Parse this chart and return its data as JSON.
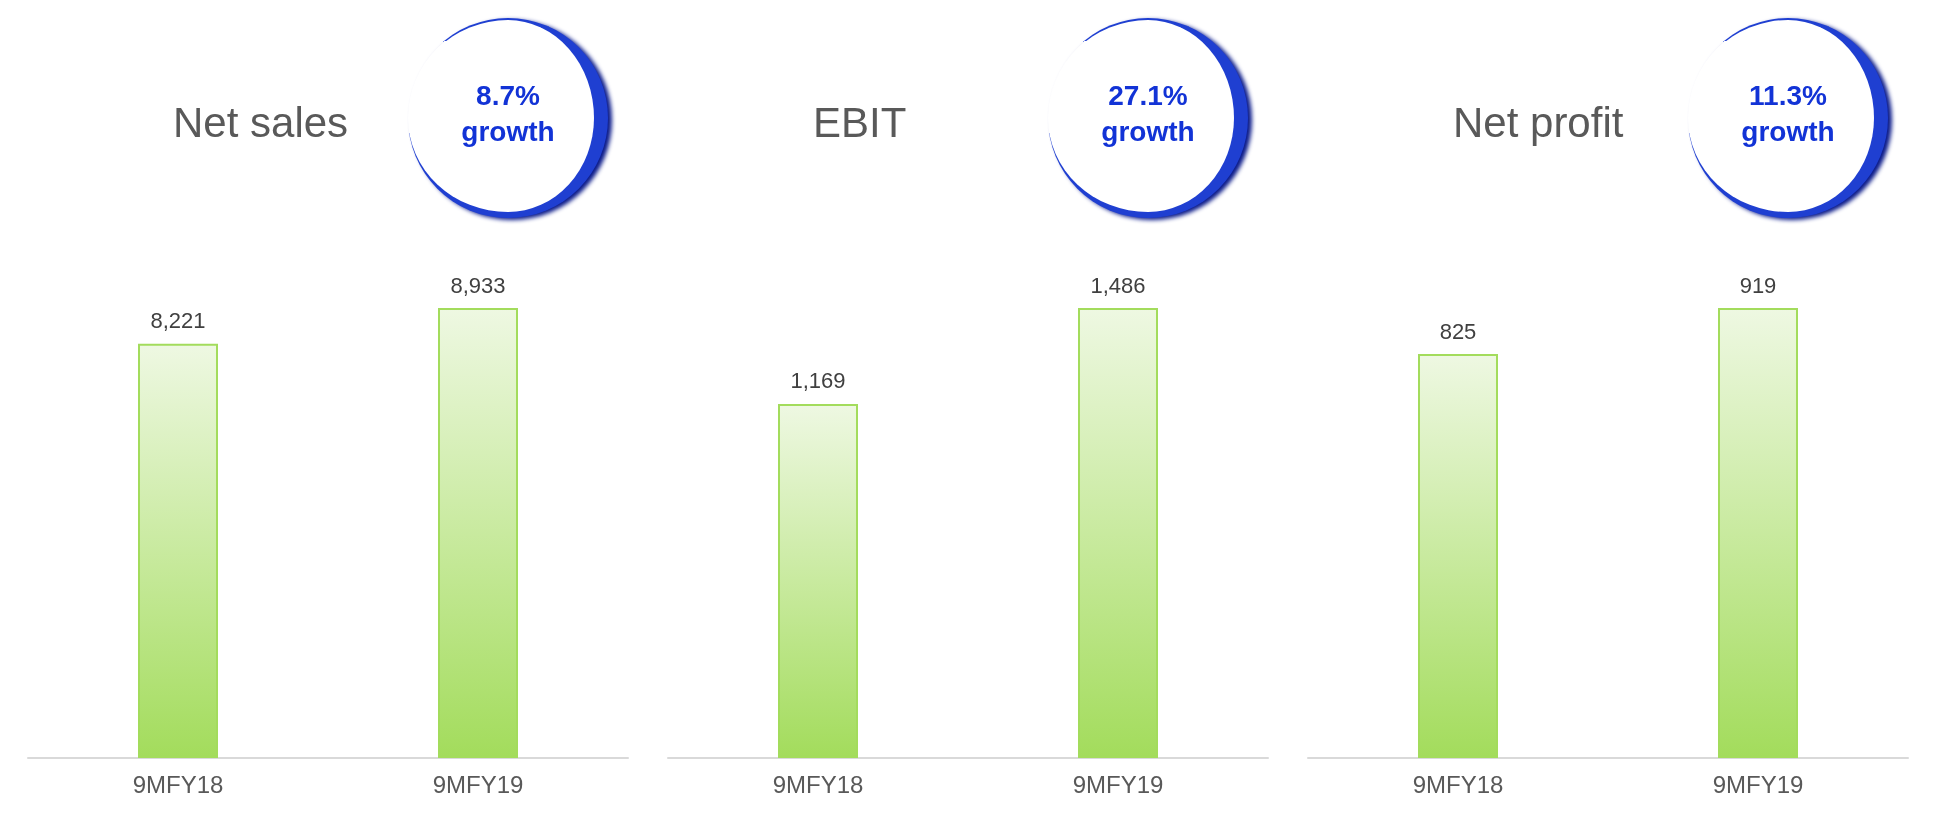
{
  "chart_data": [
    {
      "type": "bar",
      "title": "Net sales",
      "categories": [
        "9MFY18",
        "9MFY19"
      ],
      "values": [
        8221,
        8933
      ],
      "value_labels": [
        "8,221",
        "8,933"
      ],
      "color": "#a3dc5c",
      "grid": false,
      "annotations": [
        "8.7% growth"
      ]
    },
    {
      "type": "bar",
      "title": "EBIT",
      "categories": [
        "9MFY18",
        "9MFY19"
      ],
      "values": [
        1169,
        1486
      ],
      "value_labels": [
        "1,169",
        "1,486"
      ],
      "color": "#a3dc5c",
      "grid": false,
      "annotations": [
        "27.1% growth"
      ]
    },
    {
      "type": "bar",
      "title": "Net profit",
      "categories": [
        "9MFY18",
        "9MFY19"
      ],
      "values": [
        825,
        919
      ],
      "value_labels": [
        "825",
        "919"
      ],
      "color": "#a3dc5c",
      "grid": false,
      "annotations": [
        "11.3% growth"
      ]
    }
  ]
}
